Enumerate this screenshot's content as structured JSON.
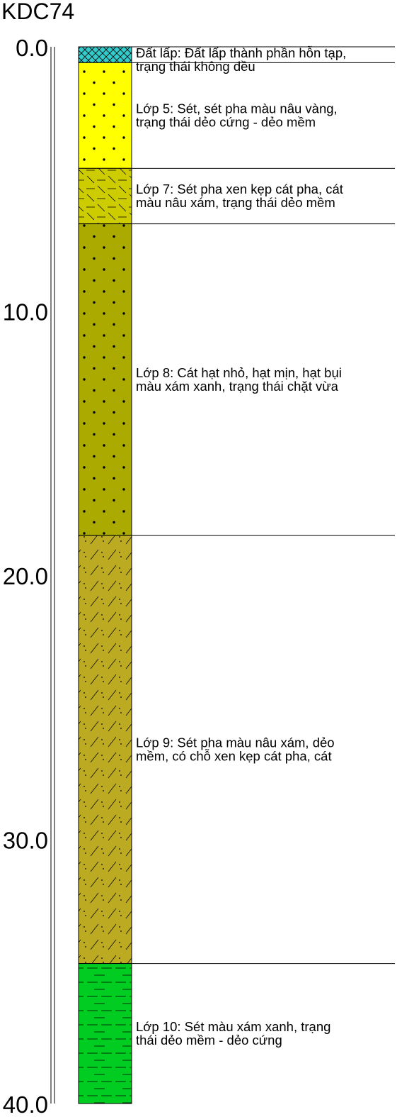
{
  "title": "KDC74",
  "depth_axis": {
    "min": 0,
    "max": 40,
    "tick_labels": [
      {
        "depth": 0,
        "label": "0.0"
      },
      {
        "depth": 10,
        "label": "10.0"
      },
      {
        "depth": 20,
        "label": "20.0"
      },
      {
        "depth": 30,
        "label": "30.0"
      },
      {
        "depth": 40,
        "label": "40.0"
      }
    ]
  },
  "layers": [
    {
      "id": "dat-lap",
      "top": 0.0,
      "bottom": 0.6,
      "color": "#33CCCC",
      "pattern": "crosshatch",
      "description": [
        "Đất lấp: Đất lấp thành phần hỗn tạp,",
        "trạng thái không đều"
      ]
    },
    {
      "id": "lop-5",
      "top": 0.6,
      "bottom": 4.6,
      "color": "#FFFF00",
      "pattern": "dots",
      "description": [
        "Lớp 5: Sét, sét pha màu nâu vàng,",
        "trạng thái dẻo cứng - dẻo mềm"
      ]
    },
    {
      "id": "lop-7",
      "top": 4.6,
      "bottom": 6.7,
      "color": "#CCCC00",
      "pattern": "dash-slash",
      "description": [
        "Lớp 7: Sét pha xen kẹp cát pha, cát",
        "màu nâu xám, trạng thái dẻo mềm"
      ]
    },
    {
      "id": "lop-8",
      "top": 6.7,
      "bottom": 18.5,
      "color": "#AAAA00",
      "pattern": "dots",
      "description": [
        "Lớp 8: Cát hạt nhỏ, hạt mịn, hạt bụi",
        "màu xám xanh, trạng thái chặt vừa"
      ]
    },
    {
      "id": "lop-9",
      "top": 18.5,
      "bottom": 34.7,
      "color": "#BBAA22",
      "pattern": "slash-dot",
      "description": [
        "Lớp 9: Sét pha màu nâu xám, dẻo",
        "mềm, có chỗ xen kẹp cát pha, cát"
      ]
    },
    {
      "id": "lop-10",
      "top": 34.7,
      "bottom": 40.0,
      "color": "#00CC22",
      "pattern": "dashes",
      "description": [
        "Lớp 10: Sét màu xám xanh, trạng",
        "thái dẻo mềm - dẻo cứng"
      ]
    }
  ]
}
